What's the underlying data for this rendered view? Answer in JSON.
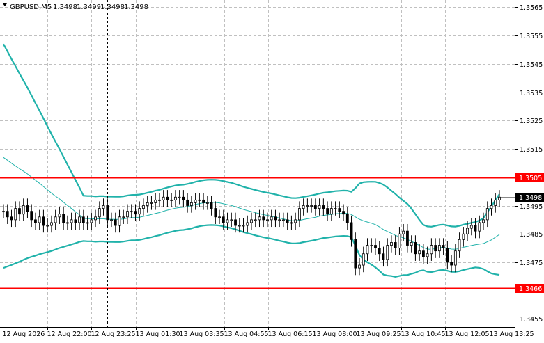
{
  "header": {
    "symbol": "GBPUSD,M5",
    "open": "1.3498",
    "high": "1.3499",
    "low": "1.3498",
    "close": "1.3498"
  },
  "colors": {
    "background": "#ffffff",
    "grid": "#c0c0c0",
    "candle": "#000000",
    "bands": "#20b2aa",
    "level_line": "#ff0000",
    "price_tag_bg": "#000000",
    "price_tag_text": "#ffffff"
  },
  "chart_data": {
    "type": "candlestick",
    "symbol": "GBPUSD",
    "timeframe": "M5",
    "ylim": [
      1.345,
      1.357
    ],
    "y_ticks": [
      "1.3565",
      "1.3555",
      "1.3545",
      "1.3535",
      "1.3525",
      "1.3515",
      "1.3495",
      "1.3485",
      "1.3475",
      "1.3455"
    ],
    "x_ticks": [
      "12 Aug 2026",
      "12 Aug 22:00",
      "12 Aug 23:25",
      "13 Aug 01:30",
      "13 Aug 03:35",
      "13 Aug 04:55",
      "13 Aug 06:15",
      "13 Aug 08:00",
      "13 Aug 09:25",
      "13 Aug 10:45",
      "13 Aug 12:05",
      "13 Aug 13:25"
    ],
    "horizontal_levels": [
      {
        "value": 1.3505,
        "label": "1.3505"
      },
      {
        "value": 1.3466,
        "label": "1.3466"
      }
    ],
    "current_price": {
      "value": 1.3498,
      "label": "1.3498"
    },
    "grid": true,
    "crosshair_index": 26,
    "closes": [
      1.3493,
      1.3491,
      1.349,
      1.3494,
      1.3492,
      1.3495,
      1.3493,
      1.349,
      1.3489,
      1.3491,
      1.3488,
      1.3488,
      1.3489,
      1.3491,
      1.3492,
      1.3489,
      1.3489,
      1.349,
      1.3489,
      1.3491,
      1.3489,
      1.3489,
      1.349,
      1.3491,
      1.3494,
      1.3495,
      1.349,
      1.349,
      1.3488,
      1.3491,
      1.3491,
      1.3493,
      1.3493,
      1.3492,
      1.3494,
      1.3495,
      1.3496,
      1.3496,
      1.3497,
      1.3497,
      1.3498,
      1.3497,
      1.3497,
      1.3498,
      1.3498,
      1.3497,
      1.3495,
      1.3496,
      1.3497,
      1.3497,
      1.3496,
      1.3496,
      1.3494,
      1.3491,
      1.3491,
      1.3489,
      1.349,
      1.349,
      1.3488,
      1.3488,
      1.3488,
      1.3489,
      1.349,
      1.349,
      1.3491,
      1.349,
      1.349,
      1.3491,
      1.349,
      1.349,
      1.349,
      1.3489,
      1.3489,
      1.349,
      1.3494,
      1.3495,
      1.3495,
      1.3495,
      1.3494,
      1.3495,
      1.3494,
      1.3492,
      1.3494,
      1.3494,
      1.3493,
      1.3492,
      1.3489,
      1.3483,
      1.3473,
      1.3474,
      1.3478,
      1.3481,
      1.3481,
      1.348,
      1.3478,
      1.3476,
      1.3481,
      1.3482,
      1.348,
      1.3485,
      1.3486,
      1.3481,
      1.3482,
      1.3478,
      1.3479,
      1.3477,
      1.3478,
      1.3481,
      1.3479,
      1.3481,
      1.348,
      1.3475,
      1.3474,
      1.3479,
      1.3483,
      1.3485,
      1.3487,
      1.3488,
      1.3486,
      1.3489,
      1.349,
      1.3494,
      1.3495,
      1.3497,
      1.3498
    ],
    "bands": {
      "upper_start": 1.3552,
      "upper_end": 1.3503,
      "middle_start": 1.3512,
      "middle_end": 1.3485,
      "lower_start": 1.3473,
      "lower_end": 1.3465
    }
  }
}
